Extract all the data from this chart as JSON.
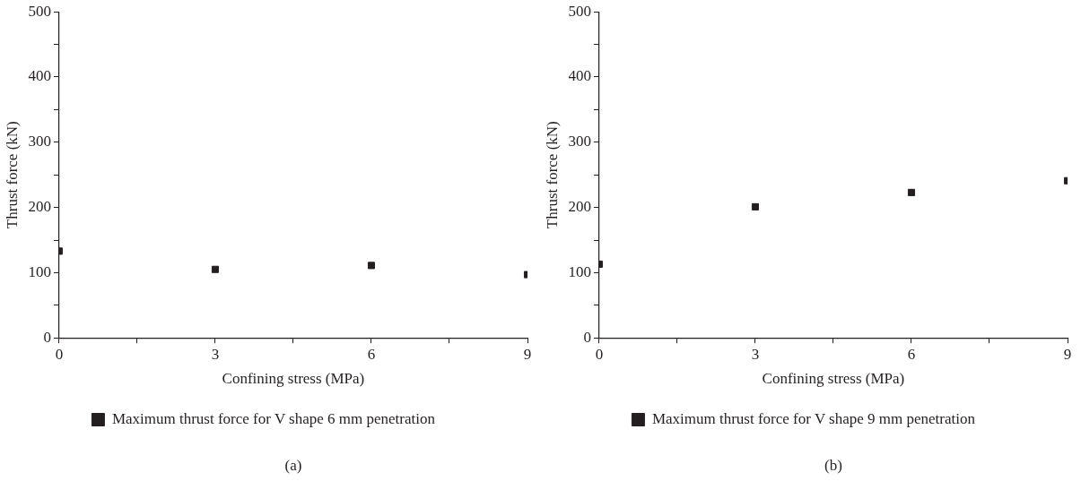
{
  "chart_data": [
    {
      "type": "scatter",
      "xlabel": "Confining stress (MPa)",
      "ylabel": "Thrust force (kN)",
      "x": [
        0,
        3,
        6,
        9
      ],
      "series": [
        {
          "name": "Maximum thrust force for V shape 6 mm penetration",
          "color": "#231f20",
          "values": [
            133,
            105,
            111,
            97
          ]
        }
      ],
      "xlim": [
        0,
        9
      ],
      "xticks": [
        0,
        {
          "value": 1.5,
          "label": null
        },
        3,
        {
          "value": 4.5,
          "label": null
        },
        6,
        {
          "value": 7.5,
          "label": null
        },
        9
      ],
      "ylim": [
        0,
        500
      ],
      "yticks": [
        0,
        {
          "value": 50,
          "label": null
        },
        100,
        {
          "value": 150,
          "label": null
        },
        200,
        {
          "value": 250,
          "label": null
        },
        300,
        {
          "value": 350,
          "label": null
        },
        400,
        {
          "value": 450,
          "label": null
        },
        500
      ],
      "marker": "square",
      "grid": false,
      "legend": "bottom",
      "annotations": [
        "(a)"
      ]
    },
    {
      "type": "scatter",
      "xlabel": "Confining stress (MPa)",
      "ylabel": "Thrust force (kN)",
      "x": [
        0,
        3,
        6,
        9
      ],
      "series": [
        {
          "name": "Maximum thrust force for V shape 9 mm penetration",
          "color": "#231f20",
          "values": [
            113,
            201,
            223,
            241
          ]
        }
      ],
      "xlim": [
        0,
        9
      ],
      "xticks": [
        0,
        {
          "value": 1.5,
          "label": null
        },
        3,
        {
          "value": 4.5,
          "label": null
        },
        6,
        {
          "value": 7.5,
          "label": null
        },
        9
      ],
      "ylim": [
        0,
        500
      ],
      "yticks": [
        0,
        {
          "value": 50,
          "label": null
        },
        100,
        {
          "value": 150,
          "label": null
        },
        200,
        {
          "value": 250,
          "label": null
        },
        300,
        {
          "value": 350,
          "label": null
        },
        400,
        {
          "value": 450,
          "label": null
        },
        500
      ],
      "marker": "square",
      "grid": false,
      "legend": "bottom",
      "annotations": [
        "(b)"
      ]
    }
  ]
}
